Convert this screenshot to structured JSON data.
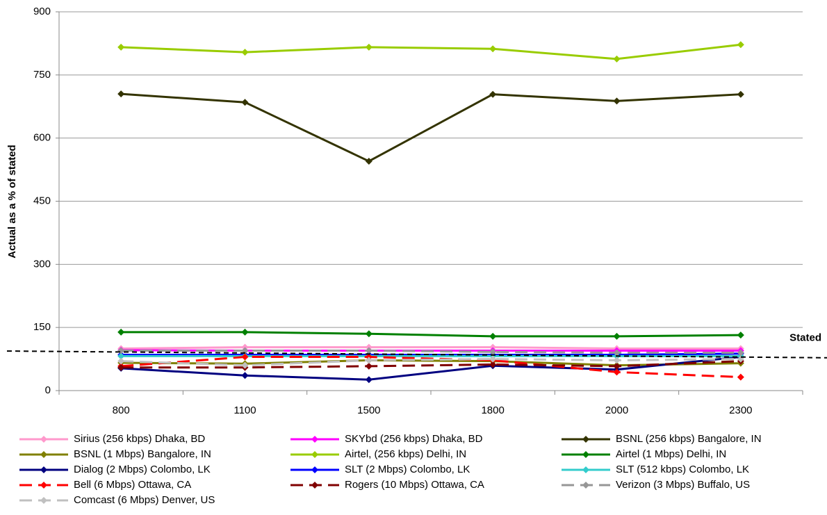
{
  "chart_data": {
    "type": "line",
    "y_label": "Actual as a % of stated",
    "categories": [
      "800",
      "1100",
      "1500",
      "1800",
      "2000",
      "2300"
    ],
    "ylim": [
      0,
      900
    ],
    "yticks": [
      0,
      150,
      300,
      450,
      600,
      750,
      900
    ],
    "grid": true,
    "reference_line": {
      "label": "Stated",
      "values": [
        94,
        78
      ],
      "color": "#000000"
    },
    "series": [
      {
        "name": "Sirius (256 kbps) Dhaka, BD",
        "color": "#ff99cc",
        "dash": false,
        "values": [
          100,
          103,
          103,
          103,
          100,
          100
        ]
      },
      {
        "name": "SKYbd (256 kbps) Dhaka, BD",
        "color": "#ff00ff",
        "dash": false,
        "values": [
          96,
          95,
          95,
          95,
          95,
          95
        ]
      },
      {
        "name": "BSNL (256 kbps) Bangalore, IN",
        "color": "#333300",
        "dash": false,
        "values": [
          705,
          685,
          545,
          704,
          688,
          704
        ]
      },
      {
        "name": "BSNL (1 Mbps) Bangalore, IN",
        "color": "#808000",
        "dash": false,
        "values": [
          66,
          64,
          72,
          70,
          60,
          65
        ]
      },
      {
        "name": "Airtel, (256 kbps) Delhi, IN",
        "color": "#99cc00",
        "dash": false,
        "values": [
          816,
          804,
          816,
          812,
          788,
          822
        ]
      },
      {
        "name": "Airtel (1 Mbps) Delhi, IN",
        "color": "#008000",
        "dash": false,
        "values": [
          139,
          139,
          135,
          129,
          129,
          132
        ]
      },
      {
        "name": "Dialog (2 Mbps) Colombo, LK",
        "color": "#000080",
        "dash": false,
        "values": [
          53,
          36,
          26,
          59,
          50,
          80
        ]
      },
      {
        "name": "SLT (2 Mbps) Colombo, LK",
        "color": "#0000ff",
        "dash": false,
        "values": [
          85,
          85,
          85,
          85,
          85,
          88
        ]
      },
      {
        "name": "SLT (512 kbps) Colombo, LK",
        "color": "#33cccc",
        "dash": false,
        "values": [
          82,
          82,
          82,
          82,
          82,
          82
        ]
      },
      {
        "name": "Bell (6 Mbps) Ottawa, CA",
        "color": "#ff0000",
        "dash": true,
        "values": [
          58,
          80,
          80,
          72,
          44,
          32
        ]
      },
      {
        "name": "Rogers (10 Mbps) Ottawa, CA",
        "color": "#800000",
        "dash": true,
        "values": [
          55,
          55,
          58,
          62,
          58,
          70
        ]
      },
      {
        "name": "Verizon (3 Mbps) Buffalo, US",
        "color": "#969696",
        "dash": true,
        "values": [
          95,
          95,
          95,
          92,
          90,
          90
        ]
      },
      {
        "name": "Comcast (6 Mbps) Denver, US",
        "color": "#c0c0c0",
        "dash": true,
        "values": [
          70,
          60,
          72,
          75,
          72,
          75
        ]
      }
    ]
  }
}
